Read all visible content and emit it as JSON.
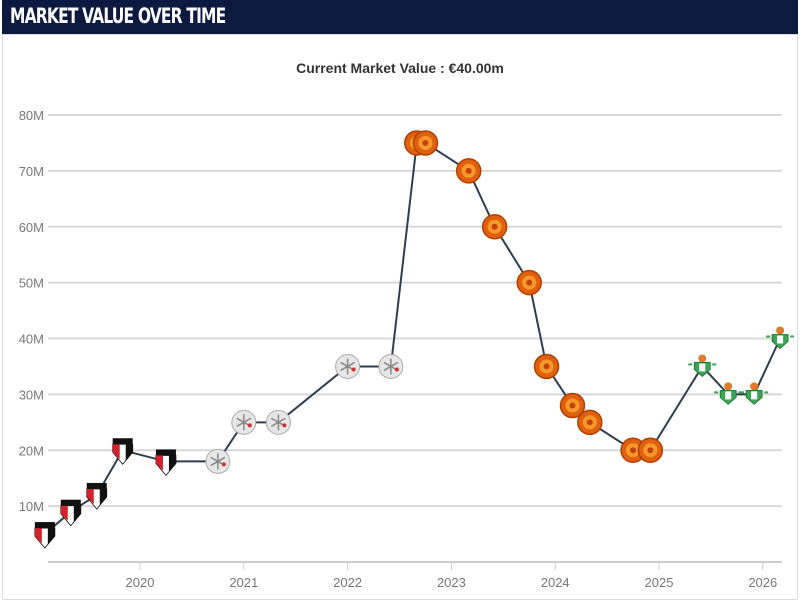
{
  "header": {
    "title": "MARKET VALUE OVER TIME"
  },
  "chart_data": {
    "type": "line",
    "title": "Current Market Value : €40.00m",
    "xlabel": "",
    "ylabel": "",
    "ylim": [
      0,
      80
    ],
    "xlim": [
      "2019-01",
      "2026-04"
    ],
    "y_ticks": [
      "10M",
      "20M",
      "30M",
      "40M",
      "50M",
      "60M",
      "70M",
      "80M"
    ],
    "y_tick_values": [
      10,
      20,
      30,
      40,
      50,
      60,
      70,
      80
    ],
    "x_ticks": [
      "2020",
      "2021",
      "2022",
      "2023",
      "2024",
      "2025",
      "2026"
    ],
    "grid": true,
    "line_color": "#2d3e50",
    "points": [
      {
        "date": "2019-02",
        "value": 5,
        "icon": "spfc-crest-icon"
      },
      {
        "date": "2019-05",
        "value": 9,
        "icon": "spfc-crest-icon"
      },
      {
        "date": "2019-08",
        "value": 12,
        "icon": "spfc-crest-icon"
      },
      {
        "date": "2019-11",
        "value": 20,
        "icon": "spfc-crest-icon"
      },
      {
        "date": "2020-04",
        "value": 18,
        "icon": "spfc-crest-icon"
      },
      {
        "date": "2020-10",
        "value": 18,
        "icon": "ajax-crest-icon"
      },
      {
        "date": "2021-01",
        "value": 25,
        "icon": "ajax-crest-icon"
      },
      {
        "date": "2021-05",
        "value": 25,
        "icon": "ajax-crest-icon"
      },
      {
        "date": "2022-01",
        "value": 35,
        "icon": "ajax-crest-icon"
      },
      {
        "date": "2022-06",
        "value": 35,
        "icon": "ajax-crest-icon"
      },
      {
        "date": "2022-09",
        "value": 75,
        "icon": "man-utd-crest-icon"
      },
      {
        "date": "2022-10",
        "value": 75,
        "icon": "man-utd-crest-icon"
      },
      {
        "date": "2023-03",
        "value": 70,
        "icon": "man-utd-crest-icon"
      },
      {
        "date": "2023-06",
        "value": 60,
        "icon": "man-utd-crest-icon"
      },
      {
        "date": "2023-10",
        "value": 50,
        "icon": "man-utd-crest-icon"
      },
      {
        "date": "2023-12",
        "value": 35,
        "icon": "man-utd-crest-icon"
      },
      {
        "date": "2024-03",
        "value": 28,
        "icon": "man-utd-crest-icon"
      },
      {
        "date": "2024-05",
        "value": 25,
        "icon": "man-utd-crest-icon"
      },
      {
        "date": "2024-10",
        "value": 20,
        "icon": "man-utd-crest-icon"
      },
      {
        "date": "2024-12",
        "value": 20,
        "icon": "man-utd-crest-icon"
      },
      {
        "date": "2025-06",
        "value": 35,
        "icon": "betis-crest-icon"
      },
      {
        "date": "2025-09",
        "value": 30,
        "icon": "betis-crest-icon"
      },
      {
        "date": "2025-12",
        "value": 30,
        "icon": "betis-crest-icon"
      },
      {
        "date": "2026-03",
        "value": 40,
        "icon": "betis-crest-icon"
      }
    ]
  }
}
